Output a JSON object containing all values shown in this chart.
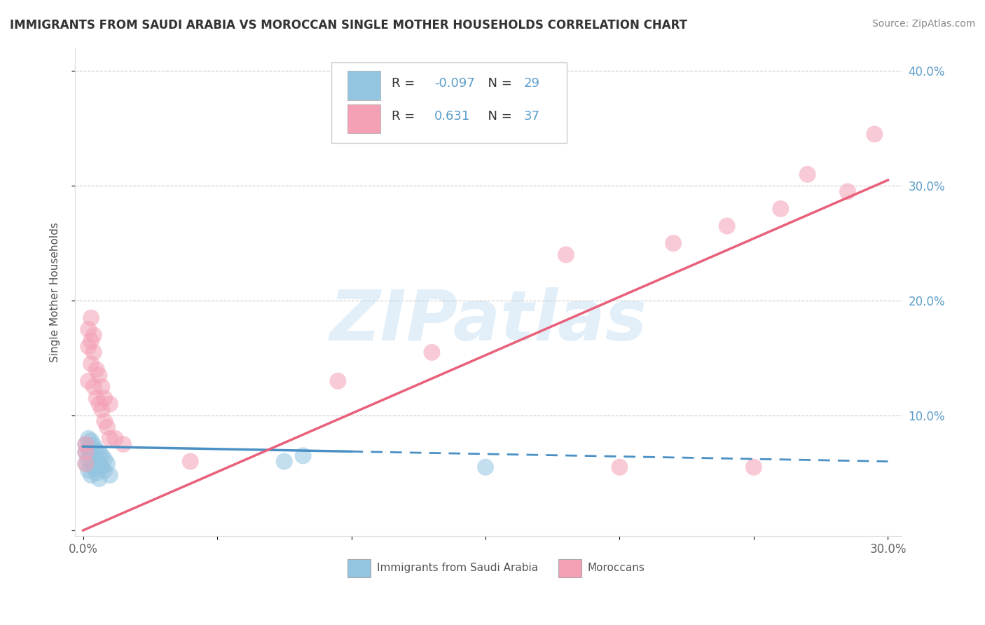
{
  "title": "IMMIGRANTS FROM SAUDI ARABIA VS MOROCCAN SINGLE MOTHER HOUSEHOLDS CORRELATION CHART",
  "source": "Source: ZipAtlas.com",
  "ylabel": "Single Mother Households",
  "watermark": "ZIPatlas",
  "xlim": [
    -0.003,
    0.305
  ],
  "ylim": [
    -0.005,
    0.42
  ],
  "xticks": [
    0.0,
    0.05,
    0.1,
    0.15,
    0.2,
    0.25,
    0.3
  ],
  "xtick_labels": [
    "0.0%",
    "",
    "",
    "",
    "",
    "",
    "30.0%"
  ],
  "yticks": [
    0.0,
    0.1,
    0.2,
    0.3,
    0.4
  ],
  "ytick_labels_right": [
    "",
    "10.0%",
    "20.0%",
    "30.0%",
    "40.0%"
  ],
  "blue_color": "#93C4E0",
  "pink_color": "#F4A0B5",
  "blue_line_color": "#4A90C4",
  "pink_line_color": "#E8607A",
  "legend_blue_label": "Immigrants from Saudi Arabia",
  "legend_pink_label": "Moroccans",
  "R_blue": "-0.097",
  "N_blue": "29",
  "R_pink": "0.631",
  "N_pink": "37",
  "blue_scatter_x": [
    0.001,
    0.001,
    0.001,
    0.002,
    0.002,
    0.002,
    0.002,
    0.003,
    0.003,
    0.003,
    0.003,
    0.004,
    0.004,
    0.004,
    0.005,
    0.005,
    0.005,
    0.006,
    0.006,
    0.006,
    0.007,
    0.007,
    0.008,
    0.008,
    0.009,
    0.01,
    0.075,
    0.082,
    0.15
  ],
  "blue_scatter_y": [
    0.075,
    0.068,
    0.058,
    0.08,
    0.072,
    0.062,
    0.052,
    0.078,
    0.068,
    0.058,
    0.048,
    0.074,
    0.064,
    0.054,
    0.07,
    0.06,
    0.05,
    0.068,
    0.058,
    0.045,
    0.065,
    0.055,
    0.062,
    0.052,
    0.058,
    0.048,
    0.06,
    0.065,
    0.055
  ],
  "pink_scatter_x": [
    0.001,
    0.001,
    0.001,
    0.002,
    0.002,
    0.002,
    0.003,
    0.003,
    0.003,
    0.004,
    0.004,
    0.004,
    0.005,
    0.005,
    0.006,
    0.006,
    0.007,
    0.007,
    0.008,
    0.008,
    0.009,
    0.01,
    0.01,
    0.012,
    0.015,
    0.04,
    0.095,
    0.13,
    0.18,
    0.22,
    0.24,
    0.26,
    0.27,
    0.285,
    0.295,
    0.25,
    0.2
  ],
  "pink_scatter_y": [
    0.075,
    0.068,
    0.058,
    0.13,
    0.16,
    0.175,
    0.145,
    0.165,
    0.185,
    0.125,
    0.155,
    0.17,
    0.115,
    0.14,
    0.11,
    0.135,
    0.105,
    0.125,
    0.095,
    0.115,
    0.09,
    0.11,
    0.08,
    0.08,
    0.075,
    0.06,
    0.13,
    0.155,
    0.24,
    0.25,
    0.265,
    0.28,
    0.31,
    0.295,
    0.345,
    0.055,
    0.055
  ],
  "blue_line_x": [
    0.0,
    0.3
  ],
  "blue_line_y": [
    0.073,
    0.06
  ],
  "blue_line_style_solid": [
    0.0,
    0.1
  ],
  "blue_line_style_dashed": [
    0.1,
    0.3
  ],
  "pink_line_x": [
    0.0,
    0.3
  ],
  "pink_line_y": [
    0.0,
    0.305
  ]
}
